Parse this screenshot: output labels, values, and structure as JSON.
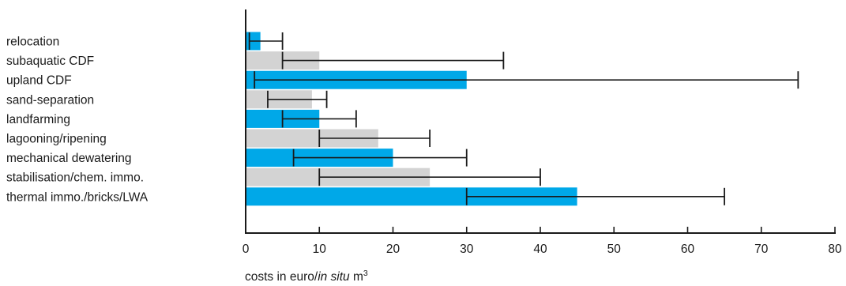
{
  "chart_data": {
    "type": "bar",
    "orientation": "horizontal",
    "categories": [
      "relocation",
      "subaquatic CDF",
      "upland CDF",
      "sand-separation",
      "landfarming",
      "lagooning/ripening",
      "mechanical dewatering",
      "stabilisation/chem. immo.",
      "thermal immo./bricks/LWA"
    ],
    "values": [
      2,
      10,
      30,
      9,
      10,
      18,
      20,
      25,
      45
    ],
    "ranges": [
      [
        0.5,
        5
      ],
      [
        5,
        35
      ],
      [
        1.2,
        75
      ],
      [
        3,
        11
      ],
      [
        5,
        15
      ],
      [
        10,
        25
      ],
      [
        6.5,
        30
      ],
      [
        10,
        40
      ],
      [
        30,
        65
      ]
    ],
    "bar_colors": [
      "#00a8e8",
      "#d3d3d3",
      "#00a8e8",
      "#d3d3d3",
      "#00a8e8",
      "#d3d3d3",
      "#00a8e8",
      "#d3d3d3",
      "#00a8e8"
    ],
    "xlim": [
      0,
      80
    ],
    "xticks": [
      "0",
      "10",
      "20",
      "30",
      "40",
      "50",
      "60",
      "70",
      "80"
    ],
    "xlabel": {
      "prefix": "costs in euro/",
      "italic": "in situ",
      "unit": " m",
      "superscript": "3"
    },
    "axis_color": "#1a1a1a",
    "errorbar_color": "#1a1a1a",
    "grid": false
  }
}
